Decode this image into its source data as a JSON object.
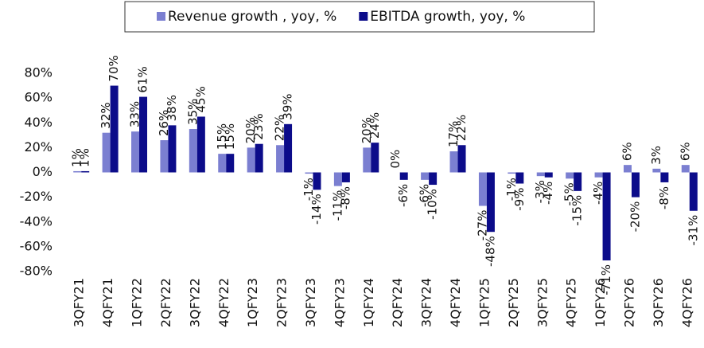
{
  "chart_data": {
    "type": "bar",
    "categories": [
      "3QFY21",
      "4QFY21",
      "1QFY22",
      "2QFY22",
      "3QFY22",
      "4QFY22",
      "1QFY23",
      "2QFY23",
      "3QFY23",
      "4QFY23",
      "1QFY24",
      "2QFY24",
      "3QFY24",
      "4QFY24",
      "1QFY25",
      "2QFY25",
      "3QFY25",
      "4QFY25",
      "1QFY26",
      "2QFY26",
      "3QFY26",
      "4QFY26"
    ],
    "series": [
      {
        "name": "Revenue growth , yoy, %",
        "color": "#7b7fd1",
        "values": [
          1,
          32,
          33,
          26,
          35,
          15,
          20,
          22,
          -1,
          -11,
          20,
          0,
          -6,
          17,
          -27,
          -1,
          -3,
          -5,
          -4,
          6,
          3,
          6
        ],
        "value_labels": [
          "1%",
          "32%",
          "33%",
          "26%",
          "35%",
          "15%",
          "20%",
          "22%",
          "-1%",
          "-11%",
          "20%",
          "0%",
          "-6%",
          "17%",
          "-27%",
          "-1%",
          "-3%",
          "-5%",
          "-4%",
          "6%",
          "3%",
          "6%"
        ]
      },
      {
        "name": "EBITDA growth, yoy, %",
        "color": "#0c0c8a",
        "values": [
          1,
          70,
          61,
          38,
          45,
          15,
          23,
          39,
          -14,
          -8,
          24,
          -6,
          -10,
          22,
          -48,
          -9,
          -4,
          -15,
          -71,
          -20,
          -8,
          -31
        ],
        "value_labels": [
          "1%",
          "70%",
          "61%",
          "38%",
          "45%",
          "15%",
          "23%",
          "39%",
          "-14%",
          "-8%",
          "24%",
          "-6%",
          "-10%",
          "22%",
          "-48%",
          "-9%",
          "-4%",
          "-15%",
          "-71%",
          "-20%",
          "-8%",
          "-31%"
        ]
      }
    ],
    "ylim": [
      -80,
      80
    ],
    "yticks": [
      {
        "value": -80,
        "label": "-80%"
      },
      {
        "value": -60,
        "label": "-60%"
      },
      {
        "value": -40,
        "label": "-40%"
      },
      {
        "value": -20,
        "label": "-20%"
      },
      {
        "value": 0,
        "label": "0%"
      },
      {
        "value": 20,
        "label": "20%"
      },
      {
        "value": 40,
        "label": "40%"
      },
      {
        "value": 60,
        "label": "60%"
      },
      {
        "value": 80,
        "label": "80%"
      }
    ],
    "legend": "top"
  }
}
